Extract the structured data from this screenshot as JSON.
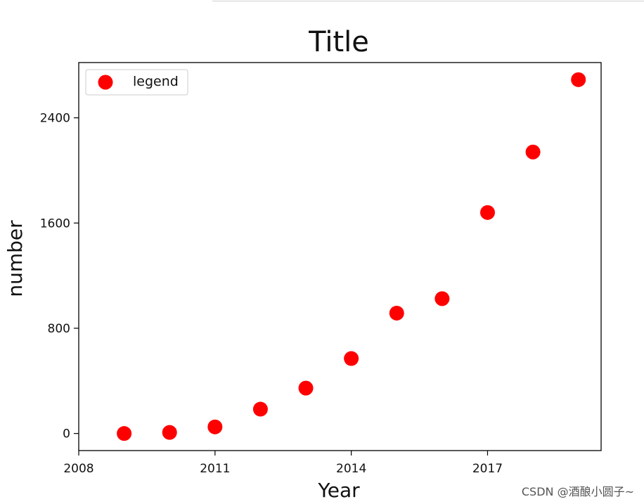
{
  "chart_data": {
    "type": "scatter",
    "title": "Title",
    "xlabel": "Year",
    "ylabel": "number",
    "x": [
      2009,
      2010,
      2011,
      2012,
      2013,
      2014,
      2015,
      2016,
      2017,
      2018,
      2019
    ],
    "series": [
      {
        "name": "legend",
        "color": "#ff0000",
        "values": [
          0,
          8,
          50,
          185,
          345,
          570,
          915,
          1025,
          1680,
          2140,
          2690
        ]
      }
    ],
    "xlim": [
      2008,
      2019.5
    ],
    "ylim": [
      -130,
      2820
    ],
    "xticks": [
      2008,
      2011,
      2014,
      2017
    ],
    "yticks": [
      0,
      800,
      1600,
      2400
    ],
    "grid": false,
    "legend_position": "upper-left"
  },
  "watermark": "CSDN @酒酿小圆子~"
}
